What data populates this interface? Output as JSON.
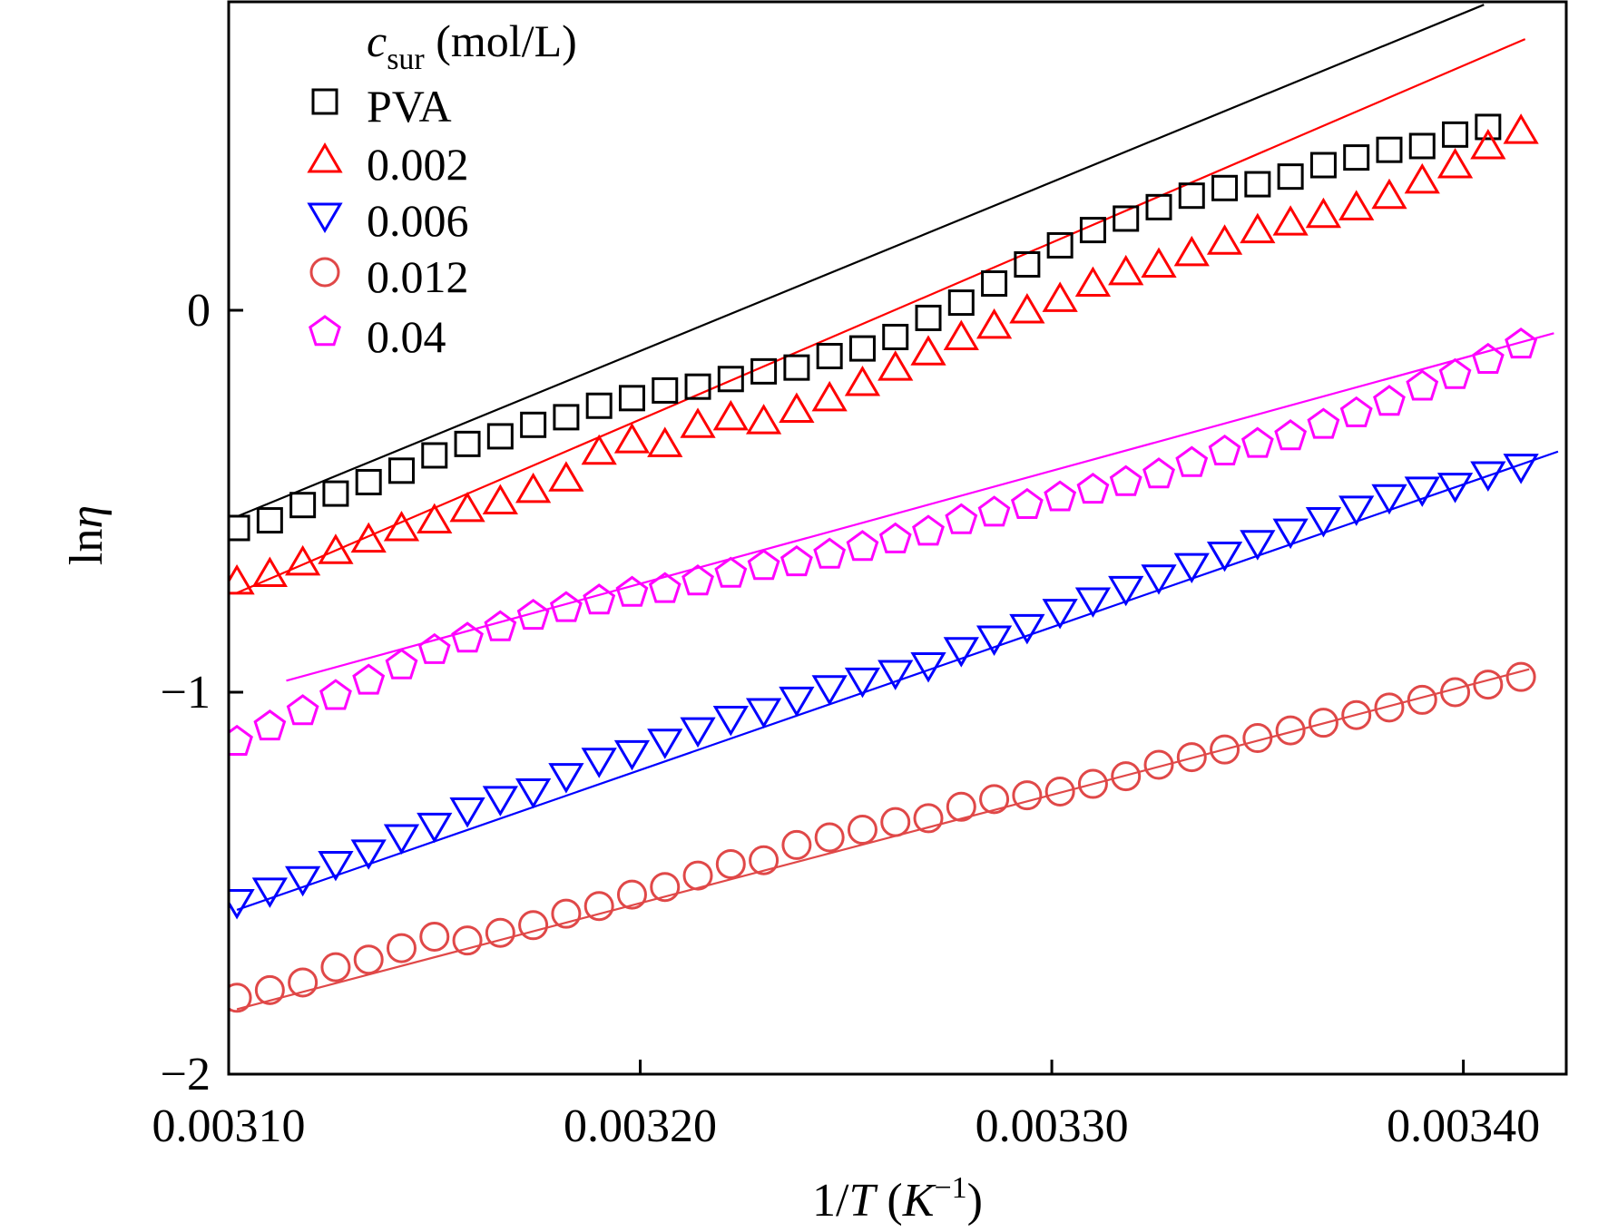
{
  "chart_data": {
    "type": "scatter",
    "title": "",
    "xlabel": "1/T (K^-1)",
    "ylabel": "lnη",
    "xlim": [
      0.0031,
      0.003425
    ],
    "ylim": [
      -2.0,
      0.8
    ],
    "x_ticks": [
      {
        "value": 0.0031,
        "label": "0.00310"
      },
      {
        "value": 0.0032,
        "label": "0.00320"
      },
      {
        "value": 0.0033,
        "label": "0.00330"
      },
      {
        "value": 0.0034,
        "label": "0.00340"
      }
    ],
    "y_ticks": [
      {
        "value": 0,
        "label": "0"
      },
      {
        "value": -1,
        "label": "−1"
      },
      {
        "value": -2,
        "label": "−2"
      }
    ],
    "legend": {
      "title_main": "c",
      "title_sub": "sur",
      "title_unit": " (mol/L)",
      "placement": "top-left"
    },
    "series": [
      {
        "name": "PVA",
        "marker": "square",
        "color": "#000000",
        "x_start": 0.003102,
        "x_step": 8e-06,
        "count": 39,
        "values": [
          -0.57,
          -0.55,
          -0.51,
          -0.48,
          -0.45,
          -0.42,
          -0.38,
          -0.35,
          -0.33,
          -0.3,
          -0.28,
          -0.25,
          -0.23,
          -0.21,
          -0.2,
          -0.18,
          -0.16,
          -0.15,
          -0.12,
          -0.1,
          -0.07,
          -0.02,
          0.02,
          0.07,
          0.12,
          0.17,
          0.21,
          0.24,
          0.27,
          0.3,
          0.32,
          0.33,
          0.35,
          0.38,
          0.4,
          0.42,
          0.43,
          0.46,
          0.48
        ],
        "fit": {
          "x": [
            0.003102,
            0.003405
          ],
          "y": [
            -0.54,
            0.8
          ]
        }
      },
      {
        "name": "0.002",
        "marker": "triangle-up",
        "color": "#ff0000",
        "x_start": 0.003102,
        "x_step": 8e-06,
        "count": 40,
        "values": [
          -0.71,
          -0.69,
          -0.66,
          -0.63,
          -0.6,
          -0.57,
          -0.55,
          -0.52,
          -0.5,
          -0.47,
          -0.44,
          -0.37,
          -0.34,
          -0.35,
          -0.3,
          -0.28,
          -0.29,
          -0.26,
          -0.23,
          -0.19,
          -0.15,
          -0.11,
          -0.07,
          -0.04,
          0.0,
          0.03,
          0.07,
          0.1,
          0.12,
          0.15,
          0.18,
          0.21,
          0.23,
          0.25,
          0.27,
          0.3,
          0.34,
          0.38,
          0.43,
          0.47
        ],
        "fit": {
          "x": [
            0.003102,
            0.003415
          ],
          "y": [
            -0.74,
            0.71
          ]
        }
      },
      {
        "name": "0.006",
        "marker": "triangle-down",
        "color": "#0000ff",
        "x_start": 0.003102,
        "x_step": 8e-06,
        "count": 40,
        "values": [
          -1.55,
          -1.52,
          -1.49,
          -1.45,
          -1.42,
          -1.38,
          -1.35,
          -1.31,
          -1.28,
          -1.26,
          -1.22,
          -1.18,
          -1.16,
          -1.13,
          -1.1,
          -1.07,
          -1.05,
          -1.02,
          -0.99,
          -0.97,
          -0.95,
          -0.93,
          -0.89,
          -0.86,
          -0.83,
          -0.79,
          -0.76,
          -0.73,
          -0.7,
          -0.67,
          -0.64,
          -0.61,
          -0.58,
          -0.55,
          -0.52,
          -0.49,
          -0.47,
          -0.46,
          -0.43,
          -0.41
        ],
        "fit": {
          "x": [
            0.003102,
            0.003423
          ],
          "y": [
            -1.57,
            -0.37
          ]
        }
      },
      {
        "name": "0.012",
        "marker": "circle",
        "color": "#e04848",
        "x_start": 0.003102,
        "x_step": 8e-06,
        "count": 40,
        "values": [
          -1.8,
          -1.78,
          -1.76,
          -1.72,
          -1.7,
          -1.67,
          -1.64,
          -1.65,
          -1.63,
          -1.61,
          -1.58,
          -1.56,
          -1.53,
          -1.51,
          -1.48,
          -1.45,
          -1.44,
          -1.4,
          -1.38,
          -1.36,
          -1.34,
          -1.33,
          -1.3,
          -1.28,
          -1.27,
          -1.26,
          -1.24,
          -1.22,
          -1.19,
          -1.17,
          -1.15,
          -1.12,
          -1.1,
          -1.08,
          -1.06,
          -1.04,
          -1.02,
          -1.0,
          -0.98,
          -0.96
        ],
        "fit": {
          "x": [
            0.003102,
            0.003416
          ],
          "y": [
            -1.83,
            -0.94
          ]
        }
      },
      {
        "name": "0.04",
        "marker": "pentagon",
        "color": "#ff00ff",
        "x_start": 0.003102,
        "x_step": 8e-06,
        "count": 40,
        "values": [
          -1.13,
          -1.09,
          -1.05,
          -1.01,
          -0.97,
          -0.93,
          -0.89,
          -0.86,
          -0.83,
          -0.8,
          -0.78,
          -0.76,
          -0.74,
          -0.73,
          -0.71,
          -0.69,
          -0.67,
          -0.66,
          -0.64,
          -0.62,
          -0.6,
          -0.58,
          -0.55,
          -0.53,
          -0.51,
          -0.49,
          -0.47,
          -0.45,
          -0.43,
          -0.4,
          -0.37,
          -0.35,
          -0.33,
          -0.3,
          -0.27,
          -0.24,
          -0.2,
          -0.17,
          -0.13,
          -0.09
        ],
        "fit": {
          "x": [
            0.003114,
            0.003422
          ],
          "y": [
            -0.97,
            -0.06
          ]
        }
      }
    ]
  }
}
